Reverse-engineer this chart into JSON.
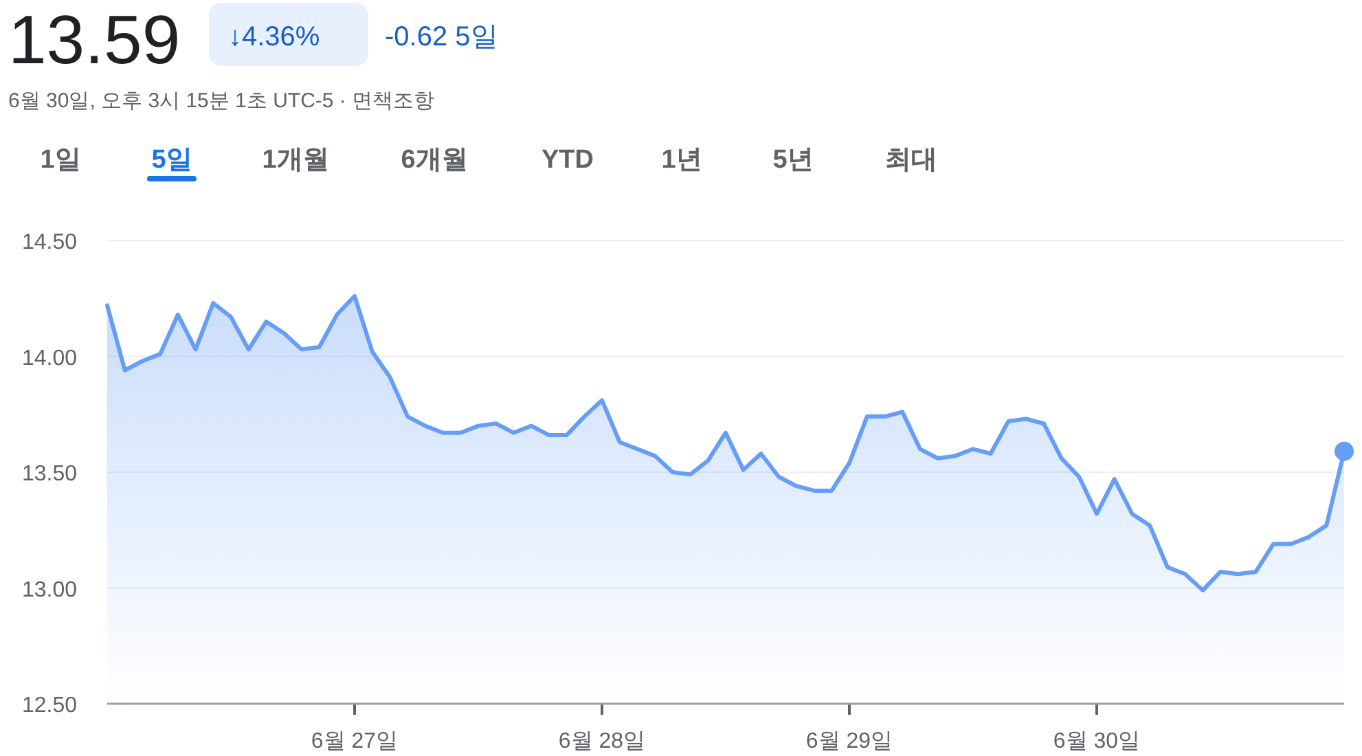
{
  "chart_data": {
    "type": "area",
    "title": "13.59",
    "subtitle": "6월 30일, 오후 3시 15분 1초 UTC-5 · 면책조항",
    "annotations": [
      "↓4.36%",
      "-0.62 5일",
      "1일",
      "5일",
      "1개월",
      "6개월",
      "YTD",
      "1년",
      "5년",
      "최대"
    ],
    "categories": [
      null,
      null,
      null,
      null,
      null,
      null,
      null,
      null,
      null,
      null,
      null,
      null,
      null,
      null,
      "6월 27일",
      null,
      null,
      null,
      null,
      null,
      null,
      null,
      null,
      null,
      null,
      null,
      null,
      null,
      "6월 28일",
      null,
      null,
      null,
      null,
      null,
      null,
      null,
      null,
      null,
      null,
      null,
      null,
      null,
      "6월 29일",
      null,
      null,
      null,
      null,
      null,
      null,
      null,
      null,
      null,
      null,
      null,
      null,
      null,
      "6월 30일",
      null,
      null,
      null,
      null,
      null,
      null,
      null,
      null,
      null,
      null,
      null,
      null,
      null,
      null
    ],
    "ylim": [
      12.5,
      14.5
    ],
    "yticks": [
      {
        "value": 12.5,
        "label": "12.50"
      },
      {
        "value": 13,
        "label": "13.00"
      },
      {
        "value": 13.5,
        "label": "13.50"
      },
      {
        "value": 14,
        "label": "14.00"
      },
      {
        "value": 14.5,
        "label": "14.50"
      }
    ],
    "grid": "y",
    "series": [
      {
        "color": "#669df6",
        "values": [
          14.22,
          13.94,
          13.98,
          14.01,
          14.18,
          14.03,
          14.23,
          14.17,
          14.03,
          14.15,
          14.1,
          14.03,
          14.04,
          14.18,
          14.26,
          14.02,
          13.91,
          13.74,
          13.7,
          13.67,
          13.67,
          13.7,
          13.71,
          13.67,
          13.7,
          13.66,
          13.66,
          13.74,
          13.81,
          13.63,
          13.6,
          13.57,
          13.5,
          13.49,
          13.55,
          13.67,
          13.51,
          13.58,
          13.48,
          13.44,
          13.42,
          13.42,
          13.54,
          13.74,
          13.74,
          13.76,
          13.6,
          13.56,
          13.57,
          13.6,
          13.58,
          13.72,
          13.73,
          13.71,
          13.56,
          13.48,
          13.32,
          13.47,
          13.32,
          13.27,
          13.09,
          13.06,
          12.99,
          13.07,
          13.06,
          13.07,
          13.19,
          13.19,
          13.22,
          13.27,
          13.59
        ]
      },
      {
        "type": "scatter",
        "color": "#669df6",
        "values": [
          null,
          null,
          null,
          null,
          null,
          null,
          null,
          null,
          null,
          null,
          null,
          null,
          null,
          null,
          null,
          null,
          null,
          null,
          null,
          null,
          null,
          null,
          null,
          null,
          null,
          null,
          null,
          null,
          null,
          null,
          null,
          null,
          null,
          null,
          null,
          null,
          null,
          null,
          null,
          null,
          null,
          null,
          null,
          null,
          null,
          null,
          null,
          null,
          null,
          null,
          null,
          null,
          null,
          null,
          null,
          null,
          null,
          null,
          null,
          null,
          null,
          null,
          null,
          null,
          null,
          null,
          null,
          null,
          null,
          null,
          13.59
        ]
      }
    ]
  }
}
